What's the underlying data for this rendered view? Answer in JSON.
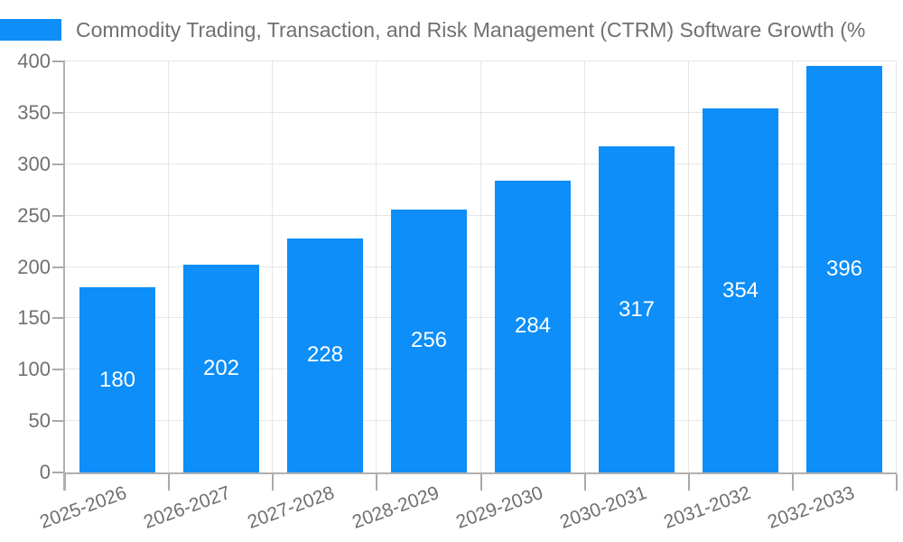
{
  "chart_data": {
    "type": "bar",
    "title": "Commodity Trading, Transaction, and Risk Management (CTRM) Software Growth (%",
    "categories": [
      "2025-2026",
      "2026-2027",
      "2027-2028",
      "2028-2029",
      "2029-2030",
      "2030-2031",
      "2031-2032",
      "2032-2033"
    ],
    "values": [
      180,
      202,
      228,
      256,
      284,
      317,
      354,
      396
    ],
    "yticks": [
      0,
      50,
      100,
      150,
      200,
      250,
      300,
      350,
      400
    ],
    "ylim": [
      0,
      400
    ],
    "xlabel": "",
    "ylabel": "",
    "grid": true,
    "legend_position": "top-left",
    "x_label_rotation": -20,
    "colors": {
      "bar": "#0D8EF8",
      "value_label": "#ffffff",
      "axis_text": "#707070",
      "grid_line": "#e6e6e6",
      "axis_line": "#b0b0b0",
      "background": "#ffffff"
    }
  }
}
